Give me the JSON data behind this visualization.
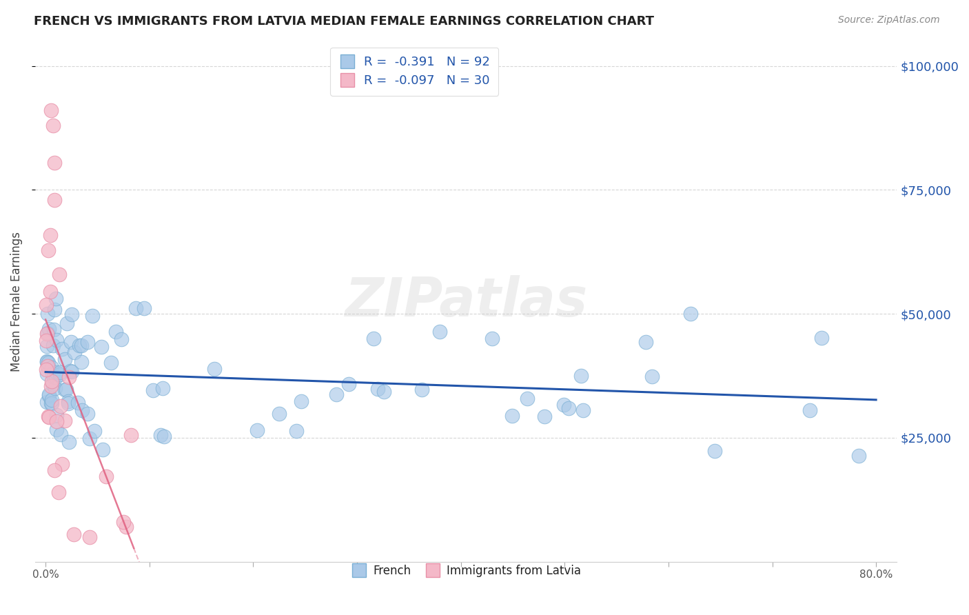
{
  "title": "FRENCH VS IMMIGRANTS FROM LATVIA MEDIAN FEMALE EARNINGS CORRELATION CHART",
  "source": "Source: ZipAtlas.com",
  "ylabel": "Median Female Earnings",
  "watermark": "ZIPatlas",
  "xlim": [
    -0.01,
    0.82
  ],
  "ylim": [
    0,
    105000
  ],
  "xtick_values": [
    0.0,
    0.1,
    0.2,
    0.3,
    0.4,
    0.5,
    0.6,
    0.7,
    0.8
  ],
  "xtick_labels": [
    "0.0%",
    "",
    "",
    "",
    "",
    "",
    "",
    "",
    "80.0%"
  ],
  "ytick_values": [
    25000,
    50000,
    75000,
    100000
  ],
  "ytick_labels": [
    "$25,000",
    "$50,000",
    "$75,000",
    "$100,000"
  ],
  "french_R": -0.391,
  "french_N": 92,
  "latvia_R": -0.097,
  "latvia_N": 30,
  "legend_label_french": "French",
  "legend_label_latvia": "Immigrants from Latvia",
  "blue_scatter_color": "#aac9e8",
  "blue_edge_color": "#7aafd4",
  "blue_line_color": "#2255aa",
  "pink_scatter_color": "#f4b8c8",
  "pink_edge_color": "#e890a8",
  "pink_line_color": "#e06080",
  "legend_box_blue": "#aac9e8",
  "legend_box_pink": "#f4b8c8"
}
